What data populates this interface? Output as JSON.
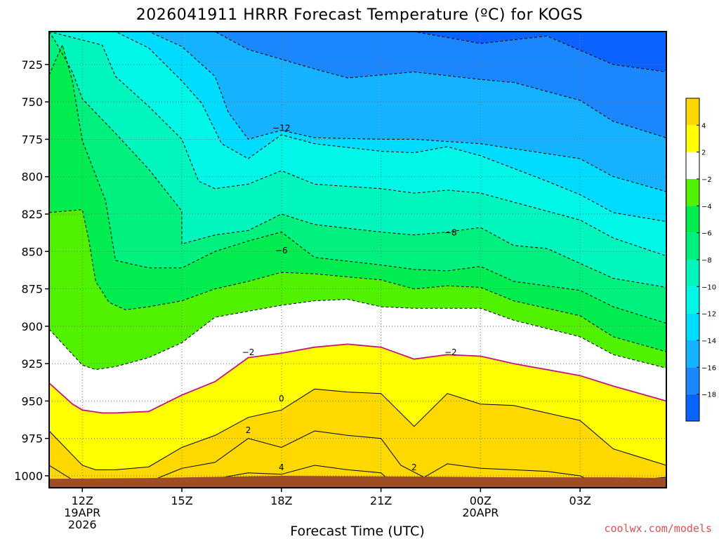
{
  "title": "2026041911 HRRR Forecast Temperature (ºC) for KOGS",
  "credit": "coolwx.com/models",
  "colors": {
    "terrain": "#9e4d26",
    "levels": [
      "#0b63ff",
      "#1b87ff",
      "#15b2ff",
      "#00dcff",
      "#00f6e6",
      "#00f6bc",
      "#00f07f",
      "#00ec4f",
      "#50f200",
      "#ffffff",
      "#ffff00",
      "#ffd800"
    ],
    "contour_dashed": "#000000",
    "contour_zero": "#c8147a"
  },
  "chart_data": {
    "type": "contour",
    "x_axis": {
      "label": "Forecast Time (UTC)",
      "ticks": [
        {
          "hour": 0,
          "lines": [
            "12Z",
            "19APR",
            "2026"
          ]
        },
        {
          "hour": 3,
          "lines": [
            "15Z"
          ]
        },
        {
          "hour": 6,
          "lines": [
            "18Z"
          ]
        },
        {
          "hour": 9,
          "lines": [
            "21Z"
          ]
        },
        {
          "hour": 12,
          "lines": [
            "00Z",
            "20APR"
          ]
        },
        {
          "hour": 15,
          "lines": [
            "03Z"
          ]
        }
      ],
      "range_hours": [
        -1,
        17.6
      ]
    },
    "y_axis": {
      "label": "",
      "ticks": [
        725,
        750,
        775,
        800,
        825,
        850,
        875,
        900,
        925,
        950,
        975,
        1000
      ],
      "range_hpa": [
        703,
        1008
      ]
    },
    "colorbar": {
      "bounds": [
        -20,
        -18,
        -16,
        -14,
        -12,
        -10,
        -8,
        -6,
        -4,
        -2,
        2,
        4,
        6
      ],
      "labels": [
        {
          "value": 4,
          "text": "4"
        },
        {
          "value": 2,
          "text": "2"
        },
        {
          "value": -2,
          "text": "−2"
        },
        {
          "value": -4,
          "text": "−4"
        },
        {
          "value": -6,
          "text": "−6"
        },
        {
          "value": -8,
          "text": "−8"
        },
        {
          "value": -10,
          "text": "−10"
        },
        {
          "value": -12,
          "text": "−12"
        },
        {
          "value": -14,
          "text": "−14"
        },
        {
          "value": -16,
          "text": "−16"
        },
        {
          "value": -18,
          "text": "−18"
        }
      ]
    },
    "contour_labels": [
      {
        "text": "−12",
        "hour": 6.0,
        "p": 767
      },
      {
        "text": "−6",
        "hour": 6.0,
        "p": 849
      },
      {
        "text": "−8",
        "hour": 11.1,
        "p": 837
      },
      {
        "text": "−2",
        "hour": 5.0,
        "p": 917
      },
      {
        "text": "−2",
        "hour": 11.1,
        "p": 917
      },
      {
        "text": "0",
        "hour": 6.0,
        "p": 948
      },
      {
        "text": "2",
        "hour": 5.0,
        "p": 969
      },
      {
        "text": "2",
        "hour": 10.0,
        "p": 994
      },
      {
        "text": "4",
        "hour": 6.0,
        "p": 994
      }
    ],
    "isotherms": [
      {
        "value": -18,
        "pts": [
          [
            -1,
            703
          ],
          [
            7.7,
            703
          ],
          [
            8,
            703
          ],
          [
            10,
            703
          ],
          [
            12,
            711
          ],
          [
            14,
            706
          ],
          [
            16,
            725
          ],
          [
            17.6,
            730
          ]
        ]
      },
      {
        "value": -16,
        "pts": [
          [
            -1,
            703
          ],
          [
            4,
            703
          ],
          [
            5,
            715
          ],
          [
            7,
            728
          ],
          [
            8,
            734
          ],
          [
            10,
            730
          ],
          [
            12,
            735
          ],
          [
            13,
            737
          ],
          [
            15,
            749
          ],
          [
            16,
            763
          ],
          [
            17.6,
            774
          ]
        ]
      },
      {
        "value": -14,
        "pts": [
          [
            -1,
            703
          ],
          [
            2,
            703
          ],
          [
            3,
            713
          ],
          [
            4,
            733
          ],
          [
            4.4,
            757
          ],
          [
            5,
            775
          ],
          [
            6,
            769
          ],
          [
            7,
            774
          ],
          [
            9,
            775
          ],
          [
            10,
            775
          ],
          [
            12,
            778
          ],
          [
            15,
            788
          ],
          [
            16,
            800
          ],
          [
            17.6,
            810
          ]
        ]
      },
      {
        "value": -12,
        "pts": [
          [
            -1,
            703
          ],
          [
            1,
            703
          ],
          [
            2,
            714
          ],
          [
            3,
            736
          ],
          [
            3.6,
            751
          ],
          [
            4.2,
            778
          ],
          [
            5,
            788
          ],
          [
            6,
            772
          ],
          [
            7,
            778
          ],
          [
            9,
            783
          ],
          [
            10,
            784
          ],
          [
            11,
            780
          ],
          [
            12,
            786
          ],
          [
            14,
            803
          ],
          [
            15,
            812
          ],
          [
            16,
            824
          ],
          [
            17.6,
            830
          ]
        ]
      },
      {
        "value": -10,
        "pts": [
          [
            -1,
            703
          ],
          [
            0.6,
            712
          ],
          [
            1,
            733
          ],
          [
            2,
            753
          ],
          [
            3,
            775
          ],
          [
            3.5,
            803
          ],
          [
            4,
            808
          ],
          [
            5,
            805
          ],
          [
            6,
            796
          ],
          [
            7,
            805
          ],
          [
            9,
            808
          ],
          [
            10,
            811
          ],
          [
            11,
            809
          ],
          [
            12,
            811
          ],
          [
            13,
            817
          ],
          [
            15,
            829
          ],
          [
            16,
            841
          ],
          [
            17.6,
            853
          ]
        ]
      },
      {
        "value": -8,
        "pts": [
          [
            -1,
            703
          ],
          [
            -0.8,
            710
          ],
          [
            -0.3,
            730
          ],
          [
            0,
            748
          ],
          [
            1,
            771
          ],
          [
            2,
            795
          ],
          [
            3,
            823
          ],
          [
            3,
            845
          ],
          [
            4,
            839
          ],
          [
            5,
            836
          ],
          [
            6,
            825
          ],
          [
            7,
            832
          ],
          [
            9,
            837
          ],
          [
            10,
            839
          ],
          [
            11,
            837
          ],
          [
            12,
            834
          ],
          [
            13,
            846
          ],
          [
            14,
            848
          ],
          [
            15,
            858
          ],
          [
            16,
            868
          ],
          [
            17.6,
            874
          ]
        ]
      },
      {
        "value": -6,
        "pts": [
          [
            -1,
            732
          ],
          [
            -0.6,
            712
          ],
          [
            -0.3,
            736
          ],
          [
            0,
            776
          ],
          [
            0.7,
            816
          ],
          [
            1,
            856
          ],
          [
            2,
            861
          ],
          [
            3,
            861
          ],
          [
            4,
            850
          ],
          [
            5,
            843
          ],
          [
            6,
            837
          ],
          [
            7,
            854
          ],
          [
            9,
            859
          ],
          [
            10,
            862
          ],
          [
            11,
            863
          ],
          [
            12,
            860
          ],
          [
            13,
            870
          ],
          [
            15,
            876
          ],
          [
            16,
            887
          ],
          [
            17.6,
            898
          ]
        ]
      },
      {
        "value": -4,
        "pts": [
          [
            -1,
            824
          ],
          [
            0,
            822
          ],
          [
            0.2,
            843
          ],
          [
            0.4,
            870
          ],
          [
            0.8,
            884
          ],
          [
            1.3,
            889
          ],
          [
            2,
            887
          ],
          [
            3,
            883
          ],
          [
            4,
            875
          ],
          [
            5,
            870
          ],
          [
            6,
            864
          ],
          [
            7,
            865
          ],
          [
            9,
            869
          ],
          [
            10,
            875
          ],
          [
            11,
            873
          ],
          [
            12,
            874
          ],
          [
            13,
            883
          ],
          [
            15,
            893
          ],
          [
            16,
            907
          ],
          [
            17.6,
            917
          ]
        ]
      },
      {
        "value": -2,
        "pts": [
          [
            -1,
            902
          ],
          [
            0,
            926
          ],
          [
            0.4,
            929
          ],
          [
            1,
            927
          ],
          [
            2,
            921
          ],
          [
            3,
            911
          ],
          [
            4,
            894
          ],
          [
            5,
            890
          ],
          [
            6,
            886
          ],
          [
            7,
            883
          ],
          [
            8,
            882
          ],
          [
            9,
            887
          ],
          [
            10,
            888
          ],
          [
            11,
            888
          ],
          [
            12,
            888
          ],
          [
            13,
            896
          ],
          [
            15,
            907
          ],
          [
            16,
            919
          ],
          [
            17.6,
            928
          ]
        ]
      },
      {
        "value": 0,
        "pts": [
          [
            -1,
            938
          ],
          [
            -0.3,
            952
          ],
          [
            0,
            956
          ],
          [
            0.6,
            958
          ],
          [
            1,
            958
          ],
          [
            2,
            957
          ],
          [
            3,
            946
          ],
          [
            4,
            937
          ],
          [
            5,
            921
          ],
          [
            6,
            918
          ],
          [
            7,
            914
          ],
          [
            8,
            912
          ],
          [
            9,
            914
          ],
          [
            10,
            922
          ],
          [
            11,
            919
          ],
          [
            12,
            920
          ],
          [
            13,
            925
          ],
          [
            15,
            933
          ],
          [
            16,
            940
          ],
          [
            17.6,
            950
          ]
        ]
      },
      {
        "value": 2,
        "pts": [
          [
            -1,
            970
          ],
          [
            0,
            993
          ],
          [
            0.4,
            996
          ],
          [
            1,
            996
          ],
          [
            2,
            994
          ],
          [
            3,
            981
          ],
          [
            4,
            973
          ],
          [
            5,
            961
          ],
          [
            6,
            956
          ],
          [
            7,
            942
          ],
          [
            8,
            944
          ],
          [
            9,
            945
          ],
          [
            10,
            967
          ],
          [
            11,
            945
          ],
          [
            12,
            952
          ],
          [
            13,
            953
          ],
          [
            15,
            963
          ],
          [
            16,
            982
          ],
          [
            17.6,
            993
          ]
        ]
      },
      {
        "value": 4,
        "pts": [
          [
            -1,
            993
          ],
          [
            -0.2,
            1004
          ],
          [
            2,
            1004
          ],
          [
            3,
            995
          ],
          [
            4,
            991
          ],
          [
            5,
            975
          ],
          [
            6,
            981
          ],
          [
            7,
            970
          ],
          [
            8,
            973
          ],
          [
            9,
            975
          ],
          [
            9.6,
            993
          ],
          [
            10.3,
            1001
          ],
          [
            11,
            992
          ],
          [
            12,
            995
          ],
          [
            13,
            996
          ],
          [
            14,
            997
          ],
          [
            15,
            1000
          ],
          [
            15.3,
            1003
          ],
          [
            16,
            1004
          ],
          [
            17.6,
            1001
          ]
        ]
      },
      {
        "value": 6,
        "pts": [
          [
            -1,
            1004
          ],
          [
            2,
            1004
          ],
          [
            4,
            1002
          ],
          [
            4,
            1002
          ],
          [
            5,
            998
          ],
          [
            6,
            999
          ],
          [
            7,
            993
          ],
          [
            8,
            996
          ],
          [
            9,
            998
          ],
          [
            9.2,
            1002
          ],
          [
            10,
            1004
          ],
          [
            15,
            1004
          ],
          [
            17.6,
            1004
          ]
        ]
      }
    ],
    "surface_p": 1002
  }
}
